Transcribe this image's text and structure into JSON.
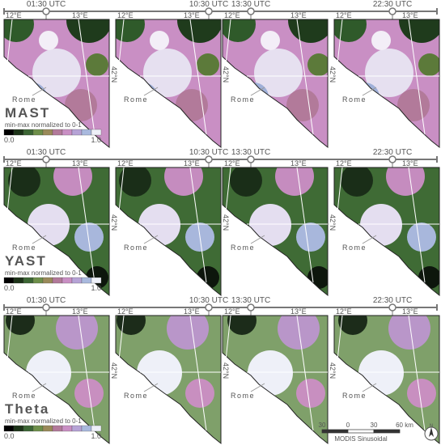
{
  "rows": [
    {
      "label": "MAST",
      "times": [
        "01:30 UTC",
        "10:30 UTC",
        "13:30 UTC",
        "22:30 UTC"
      ]
    },
    {
      "label": "YAST",
      "times": [
        "01:30 UTC",
        "10:30 UTC",
        "13:30 UTC",
        "22:30 UTC"
      ]
    },
    {
      "label": "Theta",
      "times": [
        "01:30 UTC",
        "10:30 UTC",
        "13:30 UTC",
        "22:30 UTC"
      ]
    }
  ],
  "panel_labels": {
    "lon_west": "12°E",
    "lon_east": "13°E",
    "lat": "42°N",
    "city": "Rome"
  },
  "colorbar": {
    "caption": "min-max normalized to 0-1",
    "min_label": "0.0",
    "max_label": "1.0"
  },
  "scale_bar": {
    "ticks": [
      "30",
      "0",
      "30",
      "60 km"
    ],
    "projection": "MODIS Sinusoidal"
  },
  "north_arrow": "N"
}
